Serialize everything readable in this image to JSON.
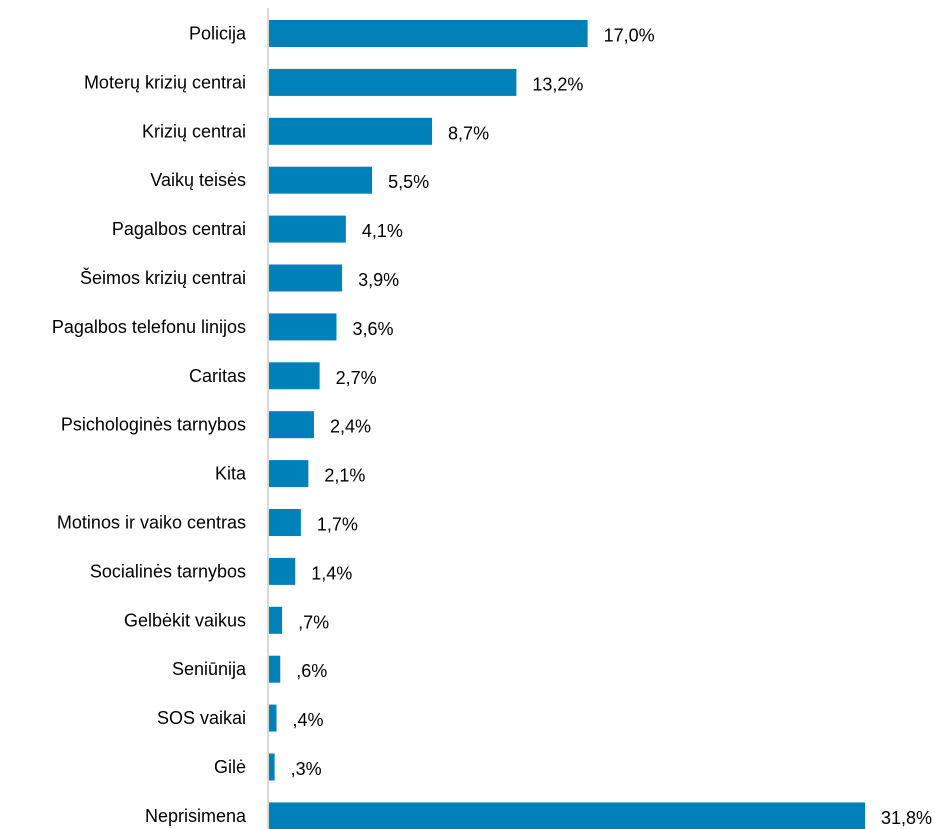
{
  "chart_data": {
    "type": "bar",
    "orientation": "horizontal",
    "categories": [
      "Policija",
      "Moterų krizių centrai",
      "Krizių centrai",
      "Vaikų teisės",
      "Pagalbos centrai",
      "Šeimos krizių centrai",
      "Pagalbos telefonu linijos",
      "Caritas",
      "Psichologinės tarnybos",
      "Kita",
      "Motinos ir vaiko centras",
      "Socialinės tarnybos",
      "Gelbėkit vaikus",
      "Seniūnija",
      "SOS vaikai",
      "Gilė",
      "Neprisimena"
    ],
    "values": [
      17.0,
      13.2,
      8.7,
      5.5,
      4.1,
      3.9,
      3.6,
      2.7,
      2.4,
      2.1,
      1.7,
      1.4,
      0.7,
      0.6,
      0.4,
      0.3,
      31.8
    ],
    "value_labels": [
      "17,0%",
      "13,2%",
      "8,7%",
      "5,5%",
      "4,1%",
      "3,9%",
      "3,6%",
      "2,7%",
      "2,4%",
      "2,1%",
      "1,7%",
      "1,4%",
      ",7%",
      ",6%",
      ",4%",
      ",3%",
      "31,8%"
    ],
    "xlim": [
      0,
      31.8
    ],
    "grid": false,
    "bar_color": "#0080B9",
    "axis_color": "#D9D9D9"
  }
}
